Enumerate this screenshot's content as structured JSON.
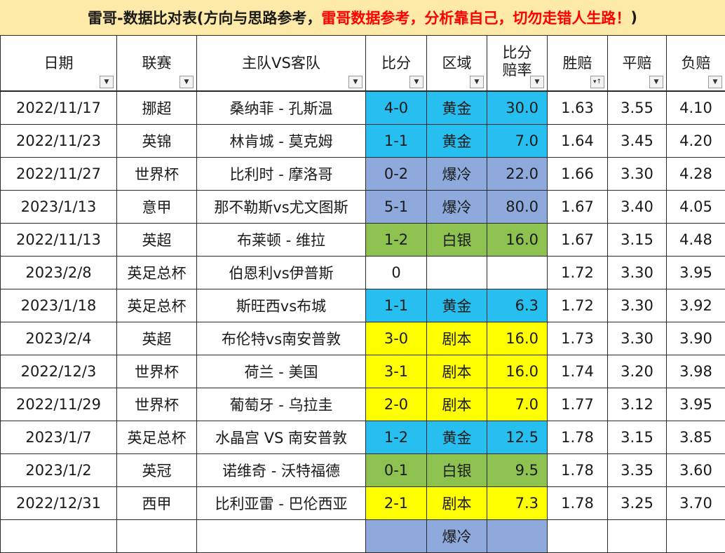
{
  "title": {
    "part_black": "雷哥-数据比对表(方向与思路参考，",
    "part_red": "雷哥数据参考，分析靠自己，切勿走错人生路！",
    "part_end": ")"
  },
  "columns": [
    {
      "label": "日期",
      "filter_icon": "dropdown-arrow"
    },
    {
      "label": "联赛",
      "filter_icon": "dropdown-arrow"
    },
    {
      "label": "主队VS客队",
      "filter_icon": "dropdown-arrow"
    },
    {
      "label": "比分",
      "filter_icon": "dropdown-arrow"
    },
    {
      "label": "区域",
      "filter_icon": "dropdown-arrow"
    },
    {
      "label_line1": "比分",
      "label_line2": "赔率",
      "filter_icon": "dropdown-arrow"
    },
    {
      "label": "胜赔",
      "filter_icon": "sort-ascending"
    },
    {
      "label": "平赔",
      "filter_icon": "dropdown-arrow"
    },
    {
      "label": "负赔",
      "filter_icon": "dropdown-arrow"
    }
  ],
  "zone_colors": {
    "黄金": "#27bfef",
    "爆冷": "#8ea9db",
    "白银": "#8dc150",
    "剧本": "#ffff00",
    "": "#ffffff"
  },
  "rows": [
    {
      "date": "2022/11/17",
      "league": "挪超",
      "match": "桑纳菲 - 孔斯温",
      "score": "4-0",
      "zone": "黄金",
      "rate": "30.0",
      "win": "1.63",
      "draw": "3.55",
      "lose": "4.10"
    },
    {
      "date": "2022/11/23",
      "league": "英锦",
      "match": "林肯城 - 莫克姆",
      "score": "1-1",
      "zone": "黄金",
      "rate": "7.0",
      "win": "1.64",
      "draw": "3.45",
      "lose": "4.20"
    },
    {
      "date": "2022/11/27",
      "league": "世界杯",
      "match": "比利时 - 摩洛哥",
      "score": "0-2",
      "zone": "爆冷",
      "rate": "22.0",
      "win": "1.66",
      "draw": "3.30",
      "lose": "4.28"
    },
    {
      "date": "2023/1/13",
      "league": "意甲",
      "match": "那不勒斯vs尤文图斯",
      "score": "5-1",
      "zone": "爆冷",
      "rate": "80.0",
      "win": "1.67",
      "draw": "3.40",
      "lose": "4.05"
    },
    {
      "date": "2022/11/13",
      "league": "英超",
      "match": "布莱顿 - 维拉",
      "score": "1-2",
      "zone": "白银",
      "rate": "16.0",
      "win": "1.67",
      "draw": "3.15",
      "lose": "4.48"
    },
    {
      "date": "2023/2/8",
      "league": "英足总杯",
      "match": "伯恩利vs伊普斯",
      "score": "0",
      "zone": "",
      "rate": "",
      "win": "1.72",
      "draw": "3.30",
      "lose": "3.95"
    },
    {
      "date": "2023/1/18",
      "league": "英足总杯",
      "match": "斯旺西vs布城",
      "score": "1-1",
      "zone": "黄金",
      "rate": "6.3",
      "win": "1.72",
      "draw": "3.30",
      "lose": "3.92"
    },
    {
      "date": "2023/2/4",
      "league": "英超",
      "match": "布伦特vs南安普敦",
      "score": "3-0",
      "zone": "剧本",
      "rate": "16.0",
      "win": "1.73",
      "draw": "3.30",
      "lose": "3.90"
    },
    {
      "date": "2022/12/3",
      "league": "世界杯",
      "match": "荷兰 - 美国",
      "score": "3-1",
      "zone": "剧本",
      "rate": "16.0",
      "win": "1.74",
      "draw": "3.20",
      "lose": "3.98"
    },
    {
      "date": "2022/11/29",
      "league": "世界杯",
      "match": "葡萄牙 - 乌拉圭",
      "score": "2-0",
      "zone": "剧本",
      "rate": "7.0",
      "win": "1.77",
      "draw": "3.12",
      "lose": "3.95"
    },
    {
      "date": "2023/1/7",
      "league": "英足总杯",
      "match": "水晶宫 VS 南安普敦",
      "score": "1-2",
      "zone": "黄金",
      "rate": "12.5",
      "win": "1.78",
      "draw": "3.15",
      "lose": "3.85"
    },
    {
      "date": "2023/1/2",
      "league": "英冠",
      "match": "诺维奇 - 沃特福德",
      "score": "0-1",
      "zone": "白银",
      "rate": "9.5",
      "win": "1.78",
      "draw": "3.35",
      "lose": "3.60"
    },
    {
      "date": "2022/12/31",
      "league": "西甲",
      "match": "比利亚雷 - 巴伦西亚",
      "score": "2-1",
      "zone": "剧本",
      "rate": "7.3",
      "win": "1.78",
      "draw": "3.25",
      "lose": "3.70"
    },
    {
      "date": "",
      "league": "",
      "match": "",
      "score": "",
      "zone": "爆冷",
      "rate": "",
      "win": "",
      "draw": "",
      "lose": ""
    }
  ]
}
